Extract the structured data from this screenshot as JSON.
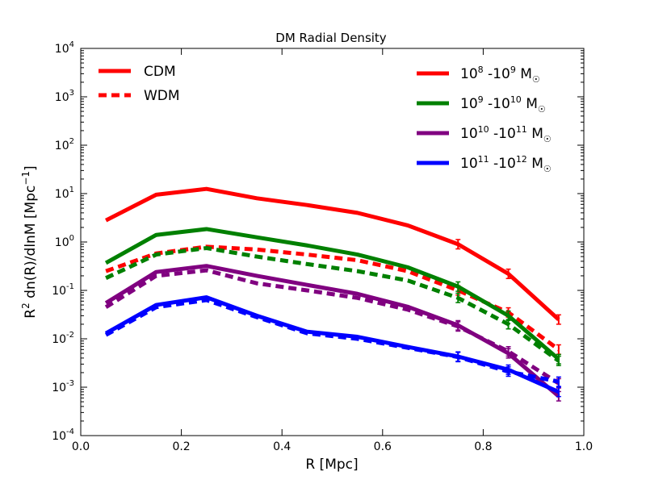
{
  "chart_data": {
    "type": "line",
    "title": "DM Radial Density",
    "xlabel": "R [Mpc]",
    "ylabel": "R2 dn(R)/dlnM [Mpc-1]",
    "ylabel_parts": {
      "r": "R",
      "r_sup": "2",
      "mid": " dn(R)/dlnM [Mpc",
      "unit_sup": "−1",
      "end": "]"
    },
    "xlim": [
      0.0,
      1.0
    ],
    "ylim": [
      0.0001,
      10000
    ],
    "yscale": "log",
    "x_ticks": [
      "0.0",
      "0.2",
      "0.4",
      "0.6",
      "0.8",
      "1.0"
    ],
    "y_ticks": [
      {
        "base": "10",
        "exp": "-4"
      },
      {
        "base": "10",
        "exp": "-3"
      },
      {
        "base": "10",
        "exp": "-2"
      },
      {
        "base": "10",
        "exp": "-1"
      },
      {
        "base": "10",
        "exp": "0"
      },
      {
        "base": "10",
        "exp": "1"
      },
      {
        "base": "10",
        "exp": "2"
      },
      {
        "base": "10",
        "exp": "3"
      },
      {
        "base": "10",
        "exp": "4"
      }
    ],
    "x": [
      0.05,
      0.15,
      0.25,
      0.35,
      0.45,
      0.55,
      0.65,
      0.75,
      0.85,
      0.95
    ],
    "line_styles": [
      {
        "name": "CDM",
        "style": "solid"
      },
      {
        "name": "WDM",
        "style": "dashed"
      }
    ],
    "mass_bins": [
      {
        "lo": "10",
        "lo_exp": "8",
        "hi": "-10",
        "hi_exp": "9",
        "unit": "M",
        "sun": "☉",
        "color": "#ff0000"
      },
      {
        "lo": "10",
        "lo_exp": "9",
        "hi": "-10",
        "hi_exp": "10",
        "unit": "M",
        "sun": "☉",
        "color": "#008000"
      },
      {
        "lo": "10",
        "lo_exp": "10",
        "hi": "-10",
        "hi_exp": "11",
        "unit": "M",
        "sun": "☉",
        "color": "#800080"
      },
      {
        "lo": "10",
        "lo_exp": "11",
        "hi": "-10",
        "hi_exp": "12",
        "unit": "M",
        "sun": "☉",
        "color": "#0000ff"
      }
    ],
    "series": [
      {
        "model": "CDM",
        "bin": 0,
        "color": "#ff0000",
        "style": "solid",
        "values": [
          2.8,
          9.5,
          12.5,
          8.0,
          5.8,
          4.0,
          2.2,
          0.9,
          0.22,
          0.025
        ]
      },
      {
        "model": "WDM",
        "bin": 0,
        "color": "#ff0000",
        "style": "dashed",
        "values": [
          0.25,
          0.58,
          0.8,
          0.7,
          0.55,
          0.42,
          0.25,
          0.1,
          0.035,
          0.006
        ]
      },
      {
        "model": "CDM",
        "bin": 1,
        "color": "#008000",
        "style": "solid",
        "values": [
          0.37,
          1.4,
          1.85,
          1.25,
          0.85,
          0.55,
          0.3,
          0.12,
          0.03,
          0.0038
        ]
      },
      {
        "model": "WDM",
        "bin": 1,
        "color": "#008000",
        "style": "dashed",
        "values": [
          0.18,
          0.55,
          0.75,
          0.5,
          0.35,
          0.25,
          0.16,
          0.07,
          0.02,
          0.0035
        ]
      },
      {
        "model": "CDM",
        "bin": 2,
        "color": "#800080",
        "style": "solid",
        "values": [
          0.055,
          0.24,
          0.32,
          0.2,
          0.13,
          0.085,
          0.046,
          0.019,
          0.005,
          0.00065
        ]
      },
      {
        "model": "WDM",
        "bin": 2,
        "color": "#800080",
        "style": "dashed",
        "values": [
          0.045,
          0.2,
          0.26,
          0.14,
          0.1,
          0.07,
          0.04,
          0.018,
          0.0055,
          0.0012
        ]
      },
      {
        "model": "CDM",
        "bin": 3,
        "color": "#0000ff",
        "style": "solid",
        "values": [
          0.013,
          0.05,
          0.072,
          0.03,
          0.014,
          0.011,
          0.0068,
          0.0043,
          0.0023,
          0.0008
        ]
      },
      {
        "model": "WDM",
        "bin": 3,
        "color": "#0000ff",
        "style": "dashed",
        "values": [
          0.012,
          0.045,
          0.063,
          0.028,
          0.013,
          0.01,
          0.0065,
          0.0042,
          0.0021,
          0.0013
        ]
      }
    ],
    "grid": false,
    "legend_placement": [
      "top-left",
      "top-right"
    ]
  }
}
